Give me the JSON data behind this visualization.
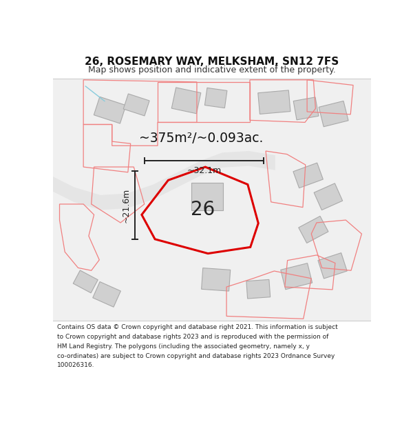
{
  "title": "26, ROSEMARY WAY, MELKSHAM, SN12 7FS",
  "subtitle": "Map shows position and indicative extent of the property.",
  "footer_lines": [
    "Contains OS data © Crown copyright and database right 2021. This information is subject",
    "to Crown copyright and database rights 2023 and is reproduced with the permission of",
    "HM Land Registry. The polygons (including the associated geometry, namely x, y",
    "co-ordinates) are subject to Crown copyright and database rights 2023 Ordnance Survey",
    "100026316."
  ],
  "area_label": "~375m²/~0.093ac.",
  "label_26": "26",
  "dim_height": "~21.6m",
  "dim_width": "~32.1m",
  "plot_line_color": "#dd0000",
  "nearby_plot_color": "#f08080",
  "dim_line_color": "#222222",
  "blue_line_color": "#88ccdd"
}
